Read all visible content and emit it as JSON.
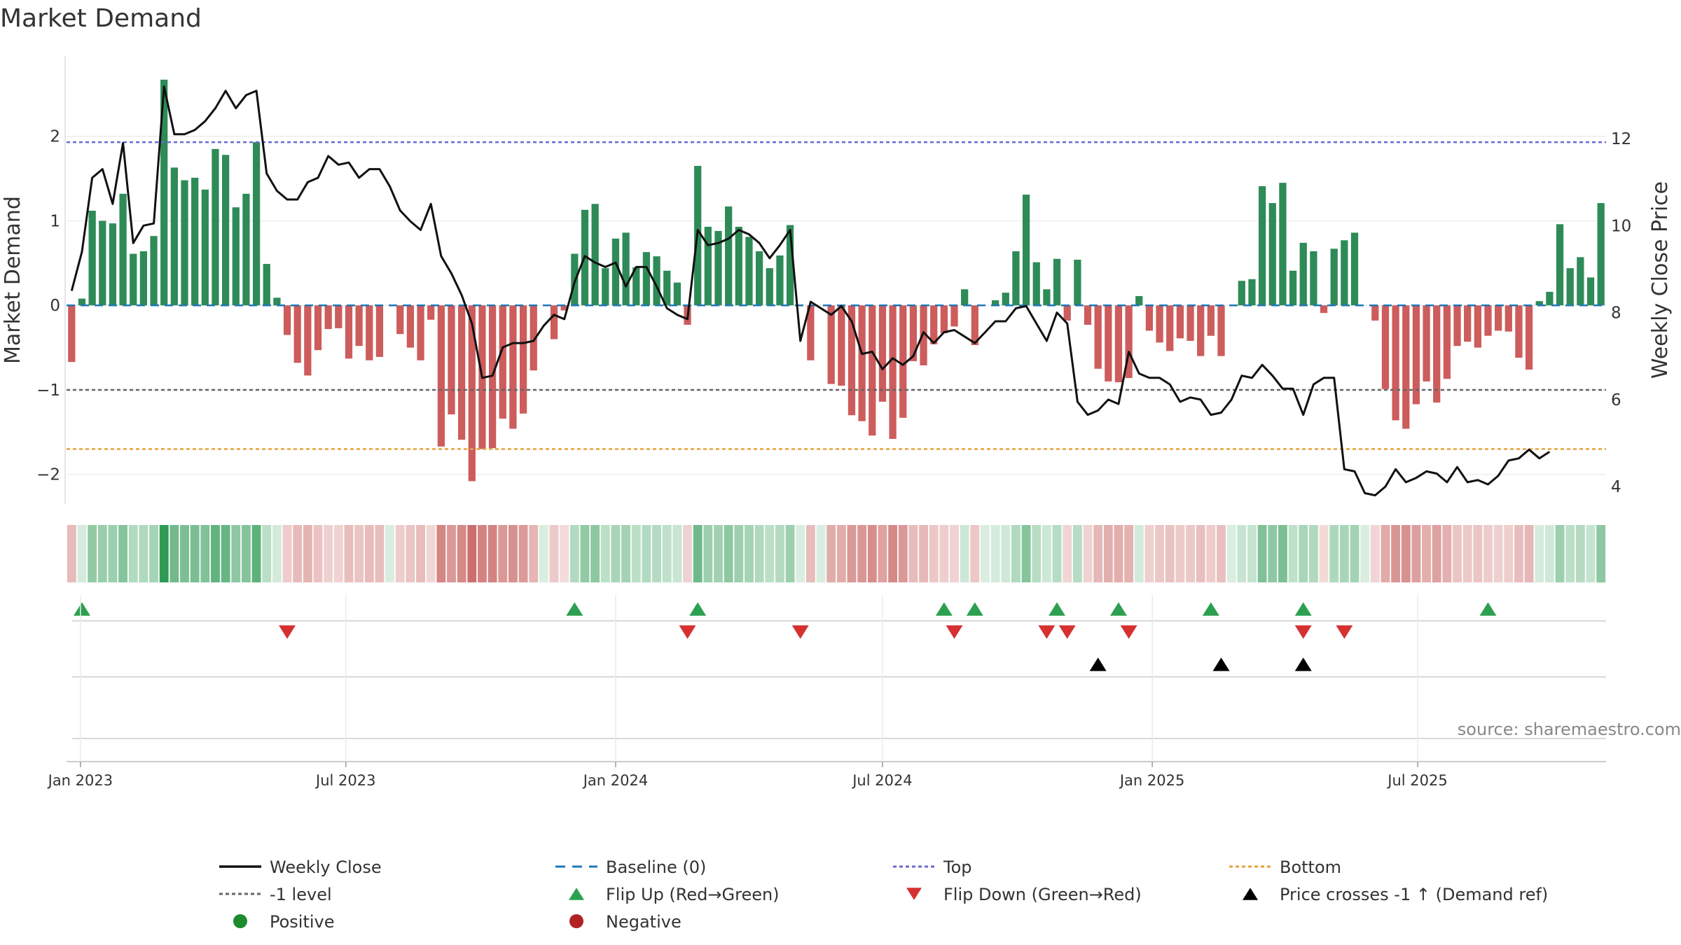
{
  "chart_data": {
    "type": "bar",
    "title": "Market Demand",
    "ylabel": "Market Demand",
    "y2label": "Weekly Close Price",
    "source": "source: sharemaestro.com",
    "ylim": [
      -2.35,
      2.95
    ],
    "y2lim": [
      3.6,
      13.9
    ],
    "yticks": [
      -2,
      -1,
      0,
      1,
      2
    ],
    "y2ticks": [
      4,
      6,
      8,
      10,
      12
    ],
    "reference_lines": {
      "top": 1.93,
      "minus_one": -1.0,
      "bottom": -1.7,
      "baseline": 0
    },
    "start_date": "2022-12-26",
    "date_ticks": [
      {
        "label": "Jan 2023",
        "date": "2023-01-01"
      },
      {
        "label": "Jul 2023",
        "date": "2023-07-01"
      },
      {
        "label": "Jan 2024",
        "date": "2024-01-01"
      },
      {
        "label": "Jul 2024",
        "date": "2024-07-01"
      },
      {
        "label": "Jan 2025",
        "date": "2025-01-01"
      },
      {
        "label": "Jul 2025",
        "date": "2025-07-01"
      }
    ],
    "demand": [
      -0.67,
      0.08,
      1.12,
      1.0,
      0.97,
      1.32,
      0.61,
      0.64,
      0.82,
      2.67,
      1.63,
      1.48,
      1.51,
      1.37,
      1.85,
      1.78,
      1.16,
      1.32,
      1.93,
      0.49,
      0.09,
      -0.35,
      -0.68,
      -0.83,
      -0.53,
      -0.28,
      -0.27,
      -0.63,
      -0.48,
      -0.65,
      -0.61,
      0.0,
      -0.34,
      -0.5,
      -0.65,
      -0.17,
      -1.67,
      -1.29,
      -1.59,
      -2.08,
      -1.7,
      -1.69,
      -1.34,
      -1.46,
      -1.28,
      -0.77,
      0.0,
      -0.4,
      -0.06,
      0.61,
      1.13,
      1.2,
      0.44,
      0.79,
      0.86,
      0.45,
      0.63,
      0.58,
      0.41,
      0.27,
      -0.23,
      1.65,
      0.93,
      0.88,
      1.17,
      0.93,
      0.81,
      0.64,
      0.44,
      0.59,
      0.95,
      0.0,
      -0.65,
      0.0,
      -0.93,
      -0.95,
      -1.3,
      -1.37,
      -1.54,
      -1.14,
      -1.58,
      -1.33,
      -0.66,
      -0.71,
      -0.46,
      -0.33,
      -0.25,
      0.19,
      -0.47,
      0.0,
      0.06,
      0.15,
      0.64,
      1.31,
      0.51,
      0.19,
      0.55,
      -0.18,
      0.54,
      -0.23,
      -0.75,
      -0.9,
      -0.91,
      -0.86,
      0.11,
      -0.3,
      -0.44,
      -0.54,
      -0.39,
      -0.42,
      -0.6,
      -0.36,
      -0.6,
      0.0,
      0.29,
      0.31,
      1.41,
      1.21,
      1.45,
      0.41,
      0.74,
      0.64,
      -0.09,
      0.67,
      0.77,
      0.86,
      0.0,
      -0.18,
      -0.99,
      -1.36,
      -1.46,
      -1.17,
      -0.9,
      -1.15,
      -0.87,
      -0.48,
      -0.43,
      -0.5,
      -0.36,
      -0.3,
      -0.31,
      -0.62,
      -0.76,
      0.05,
      0.16,
      0.96,
      0.44,
      0.57,
      0.33,
      1.21
    ],
    "weekly_close": [
      8.5,
      9.4,
      11.1,
      11.3,
      10.5,
      11.9,
      9.6,
      10.0,
      10.05,
      13.2,
      12.1,
      12.1,
      12.2,
      12.4,
      12.7,
      13.1,
      12.7,
      13.0,
      13.1,
      11.2,
      10.8,
      10.6,
      10.6,
      11.0,
      11.1,
      11.6,
      11.4,
      11.45,
      11.1,
      11.3,
      11.3,
      10.9,
      10.35,
      10.1,
      9.9,
      10.5,
      9.3,
      8.9,
      8.4,
      7.75,
      6.5,
      6.55,
      7.2,
      7.3,
      7.3,
      7.35,
      7.7,
      7.95,
      7.85,
      8.7,
      9.3,
      9.15,
      9.05,
      9.15,
      8.6,
      9.05,
      9.05,
      8.6,
      8.1,
      7.95,
      7.85,
      9.9,
      9.55,
      9.6,
      9.7,
      9.9,
      9.8,
      9.6,
      9.25,
      9.55,
      9.9,
      7.35,
      8.25,
      8.1,
      7.95,
      8.15,
      7.8,
      7.05,
      7.1,
      6.7,
      6.95,
      6.8,
      7.0,
      7.55,
      7.3,
      7.55,
      7.6,
      7.45,
      7.3,
      7.55,
      7.8,
      7.8,
      8.1,
      8.15,
      7.75,
      7.35,
      8.0,
      7.75,
      5.95,
      5.65,
      5.75,
      6.0,
      5.9,
      7.1,
      6.6,
      6.5,
      6.5,
      6.35,
      5.95,
      6.05,
      6.0,
      5.65,
      5.7,
      6.0,
      6.55,
      6.5,
      6.8,
      6.55,
      6.25,
      6.25,
      5.65,
      6.35,
      6.5,
      6.5,
      4.4,
      4.35,
      3.85,
      3.8,
      4.0,
      4.4,
      4.1,
      4.2,
      4.35,
      4.3,
      4.1,
      4.45,
      4.1,
      4.15,
      4.05,
      4.25,
      4.6,
      4.65,
      4.85,
      4.65,
      4.8
    ],
    "flip_up_indices": [
      1,
      49,
      61,
      85,
      88,
      96,
      102,
      111,
      120,
      138
    ],
    "flip_down_indices": [
      21,
      60,
      71,
      86,
      95,
      97,
      103,
      120,
      124
    ],
    "price_cross_indices": [
      100,
      112,
      120
    ],
    "colors": {
      "positive": "#2e8b57",
      "negative": "#cd5c5c",
      "price": "#111111",
      "baseline": "#1f77b4",
      "top": "#6a6ad0",
      "minus_one": "#666666",
      "bottom": "#e6a23c",
      "flip_up": "#2ca050",
      "flip_down": "#d63030",
      "price_cross": "#000000",
      "strip_positive": "#2f9a55",
      "strip_negative": "#c0504d",
      "legend_positive": "#1e8a2e",
      "legend_negative": "#b22222"
    },
    "legend": [
      {
        "id": "weekly-close",
        "label": "Weekly Close",
        "kind": "line",
        "color": "#111111"
      },
      {
        "id": "baseline",
        "label": "Baseline (0)",
        "kind": "dash",
        "color": "#1f77b4"
      },
      {
        "id": "top",
        "label": "Top",
        "kind": "dot",
        "color": "#6a6ad0"
      },
      {
        "id": "bottom",
        "label": "Bottom",
        "kind": "dot",
        "color": "#e6a23c"
      },
      {
        "id": "minus-one",
        "label": "-1 level",
        "kind": "dot",
        "color": "#666666"
      },
      {
        "id": "flip-up",
        "label": "Flip Up (Red→Green)",
        "kind": "tri-up",
        "color": "#2ca050"
      },
      {
        "id": "flip-down",
        "label": "Flip Down (Green→Red)",
        "kind": "tri-down",
        "color": "#d63030"
      },
      {
        "id": "price-cross",
        "label": "Price crosses -1 ↑ (Demand ref)",
        "kind": "tri-up",
        "color": "#000000"
      },
      {
        "id": "positive",
        "label": "Positive",
        "kind": "circle",
        "color": "#1e8a2e"
      },
      {
        "id": "negative",
        "label": "Negative",
        "kind": "circle",
        "color": "#b22222"
      }
    ]
  }
}
